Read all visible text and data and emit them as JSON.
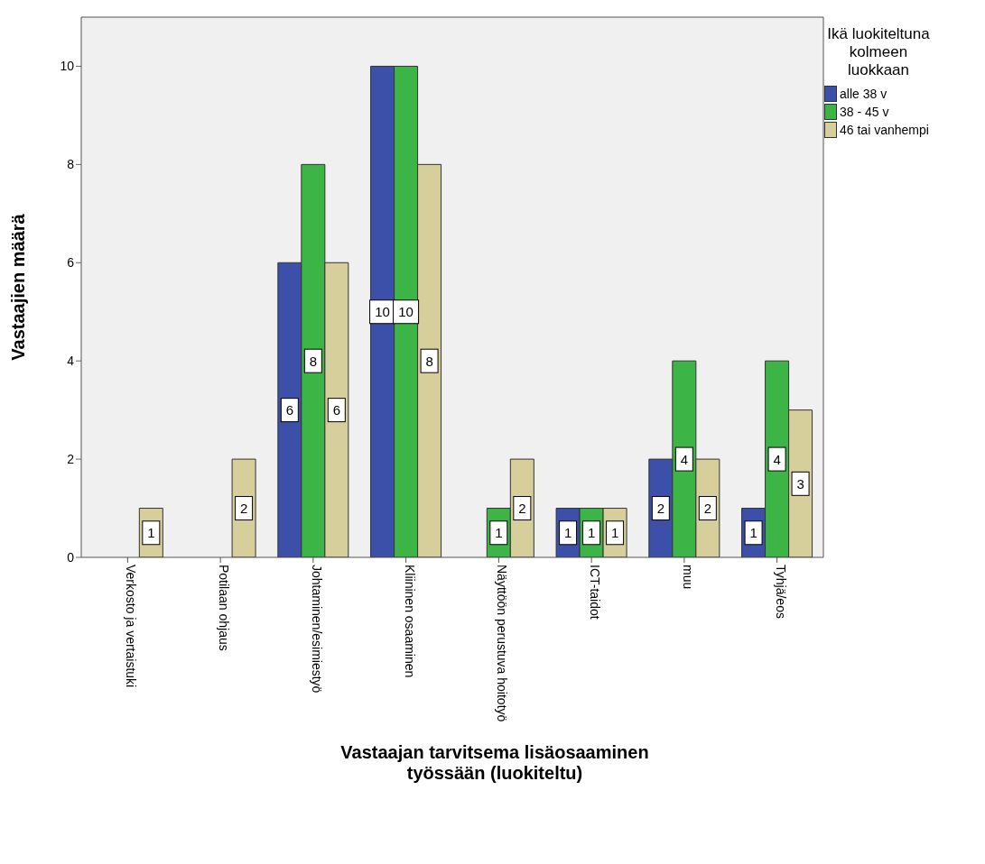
{
  "chart_data": {
    "type": "bar",
    "xlabel": "Vastaajan tarvitsema lisäosaaminen työssään (luokiteltu)",
    "ylabel": "Vastaajien määrä",
    "legend_title": "Ikä luokiteltuna kolmeen luokkaan",
    "categories": [
      "Verkosto ja vertaistuki",
      "Potilaan ohjaus",
      "Johtaminen/esimiestyö",
      "Kliininen osaaminen",
      "Näyttöön perustuva hoitotyö",
      "ICT-taidot",
      "muu",
      "Tyhjä/eos"
    ],
    "series": [
      {
        "name": "alle 38 v",
        "color": "#3c50aa",
        "values": [
          null,
          null,
          6,
          10,
          null,
          1,
          2,
          1
        ]
      },
      {
        "name": "38 - 45 v",
        "color": "#3cb446",
        "values": [
          null,
          null,
          8,
          10,
          1,
          1,
          4,
          4
        ]
      },
      {
        "name": "46 tai vanhempi",
        "color": "#d6cf9c",
        "values": [
          1,
          2,
          6,
          8,
          2,
          1,
          2,
          3
        ]
      }
    ],
    "ylim": [
      0,
      11
    ],
    "yticks": [
      0,
      2,
      4,
      6,
      8,
      10
    ],
    "legend": "top right",
    "data_labels": true
  }
}
